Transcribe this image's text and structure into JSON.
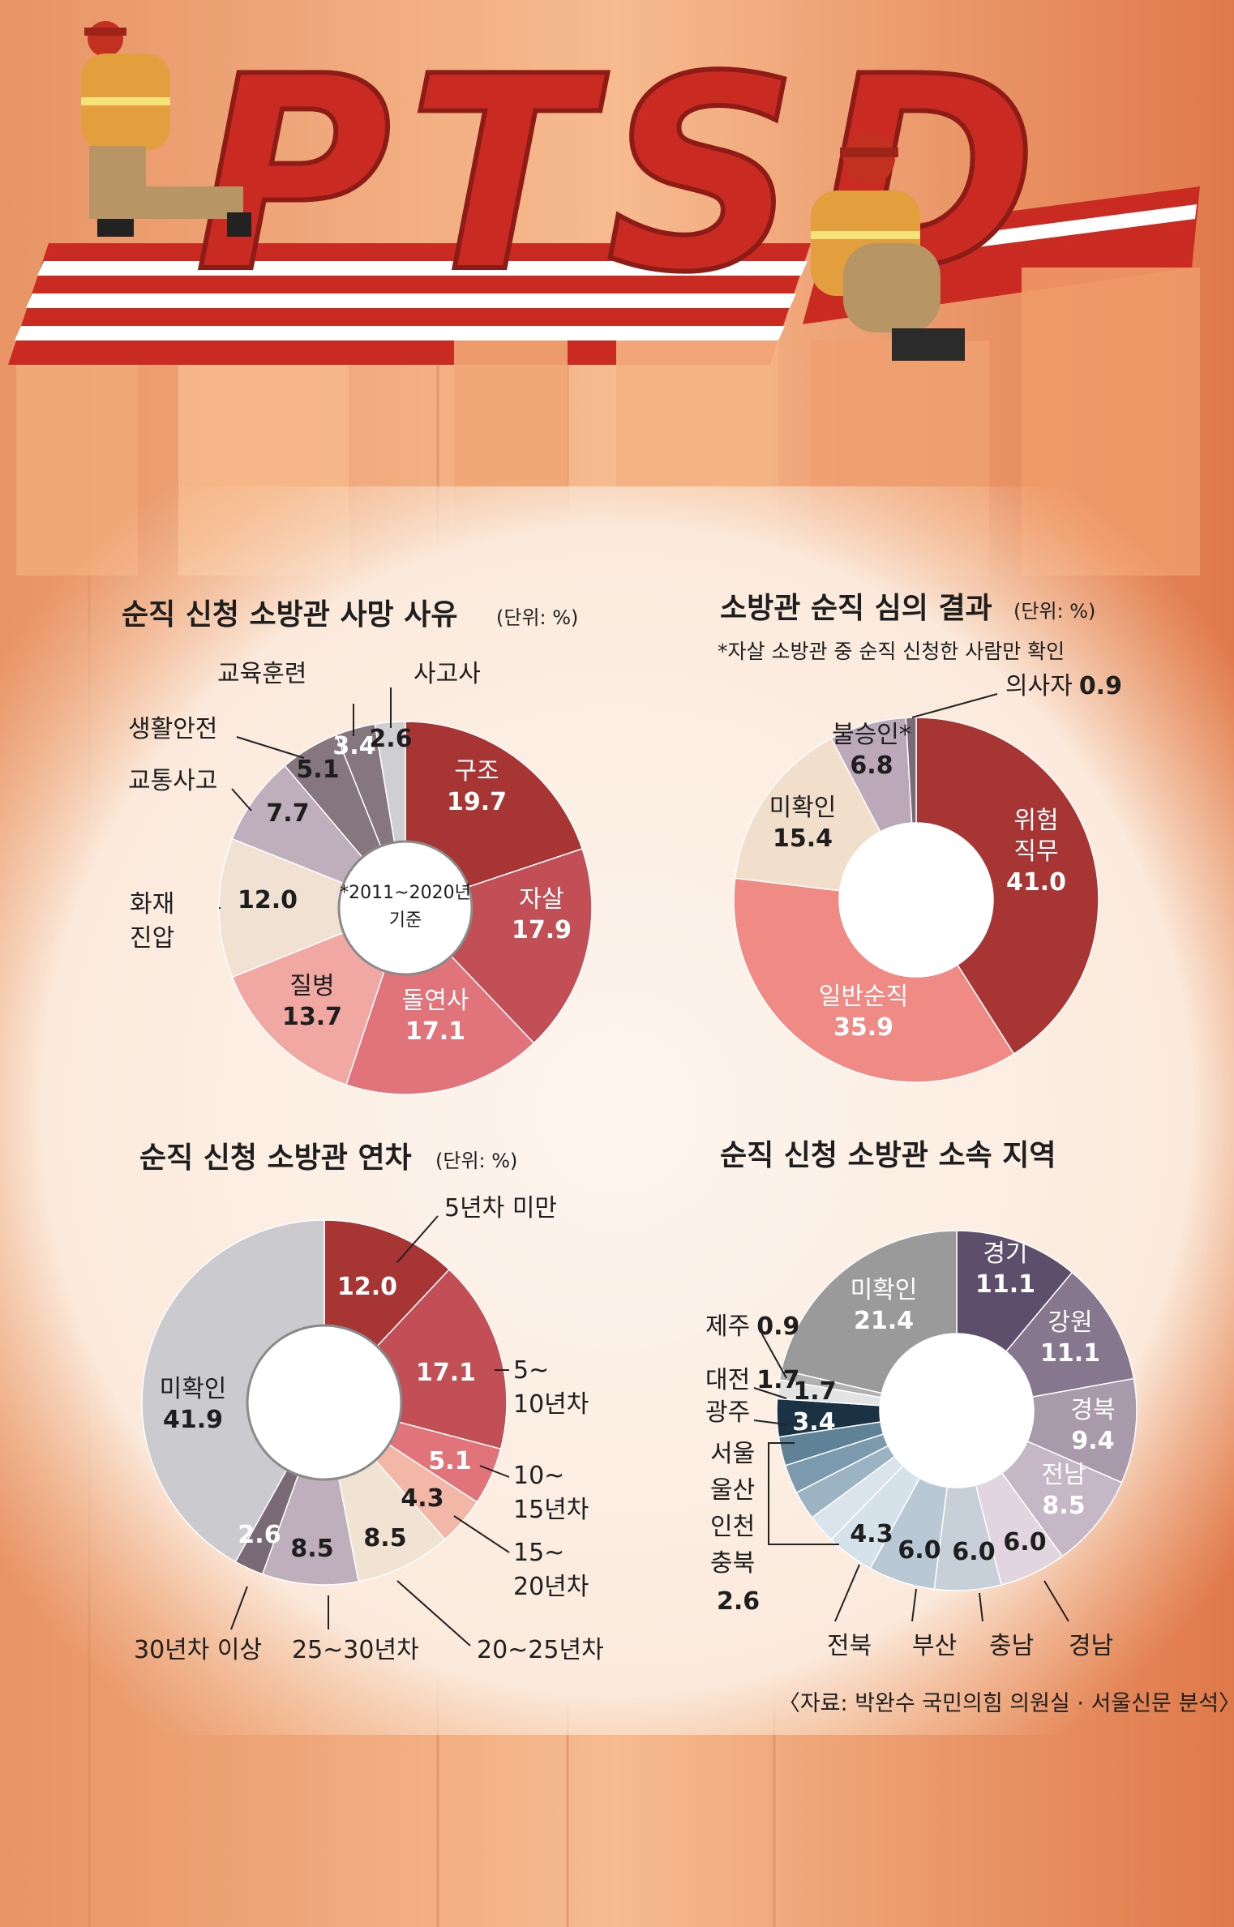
{
  "header": {
    "title": "PTSD"
  },
  "colors": {
    "red": "#c92a21",
    "wall": "#f0a877",
    "panel": "#fbefe6",
    "c1": "#a73534",
    "c2": "#c24f55",
    "c3": "#e0747a",
    "c4": "#f1a8a2",
    "c5": "#f0e1d2",
    "c6": "#bfaebb",
    "c7": "#86777f",
    "c8": "#cfcfd2",
    "grayLight": "#cbcbcf",
    "gray": "#9a9a9a",
    "purpleDark": "#5d4f6b",
    "purpleMid": "#86778f",
    "purpleLight": "#b2a6b8",
    "navy": "#1b3245",
    "blueSteel": "#5c7f94",
    "blueLight": "#dbe5ec"
  },
  "source": "〈자료: 박완수 국민의힘 의원실 · 서울신문 분석〉",
  "chart_data": [
    {
      "id": "death-cause",
      "type": "pie",
      "title": "순직 신청 소방관 사망 사유",
      "unit": "(단위: %)",
      "center_label": [
        "*2011~2020년",
        "기준"
      ],
      "slices": [
        {
          "label": "구조",
          "value": 19.7
        },
        {
          "label": "자살",
          "value": 17.9
        },
        {
          "label": "돌연사",
          "value": 17.1
        },
        {
          "label": "질병",
          "value": 13.7
        },
        {
          "label": "화재 진압",
          "value": 12.0
        },
        {
          "label": "교통사고",
          "value": 7.7
        },
        {
          "label": "생활안전",
          "value": 5.1
        },
        {
          "label": "교육훈련",
          "value": 3.4
        },
        {
          "label": "사고사",
          "value": 2.6
        }
      ]
    },
    {
      "id": "review-result",
      "type": "pie",
      "title": "소방관 순직 심의 결과",
      "unit": "(단위: %)",
      "note": "*자살 소방관 중 순직 신청한 사람만 확인",
      "slices": [
        {
          "label": "위험 직무",
          "value": 41.0
        },
        {
          "label": "일반순직",
          "value": 35.9
        },
        {
          "label": "미확인",
          "value": 15.4
        },
        {
          "label": "불승인*",
          "value": 6.8
        },
        {
          "label": "의사자",
          "value": 0.9
        }
      ]
    },
    {
      "id": "service-years",
      "type": "pie",
      "title": "순직 신청 소방관 연차",
      "unit": "(단위: %)",
      "slices": [
        {
          "label": "5년차 미만",
          "value": 12.0
        },
        {
          "label": "5~10년차",
          "value": 17.1
        },
        {
          "label": "10~15년차",
          "value": 5.1
        },
        {
          "label": "15~20년차",
          "value": 4.3
        },
        {
          "label": "20~25년차",
          "value": 8.5
        },
        {
          "label": "25~30년차",
          "value": 8.5
        },
        {
          "label": "30년차 이상",
          "value": 2.6
        },
        {
          "label": "미확인",
          "value": 41.9
        }
      ]
    },
    {
      "id": "region",
      "type": "pie",
      "title": "순직 신청 소방관 소속 지역",
      "slices": [
        {
          "label": "경기",
          "value": 11.1
        },
        {
          "label": "강원",
          "value": 11.1
        },
        {
          "label": "경북",
          "value": 9.4
        },
        {
          "label": "전남",
          "value": 8.5
        },
        {
          "label": "경남",
          "value": 6.0
        },
        {
          "label": "충남",
          "value": 6.0
        },
        {
          "label": "부산",
          "value": 6.0
        },
        {
          "label": "전북",
          "value": 4.3
        },
        {
          "label": "충북",
          "value": 2.6
        },
        {
          "label": "인천",
          "value": 2.6
        },
        {
          "label": "울산",
          "value": 2.6
        },
        {
          "label": "서울",
          "value": 2.6
        },
        {
          "label": "광주",
          "value": 3.4
        },
        {
          "label": "대전",
          "value": 1.7
        },
        {
          "label": "제주",
          "value": 0.9
        },
        {
          "label": "미확인",
          "value": 21.4
        }
      ],
      "group_label": [
        "서울",
        "울산",
        "인천",
        "충북"
      ],
      "group_value": "2.6"
    }
  ]
}
